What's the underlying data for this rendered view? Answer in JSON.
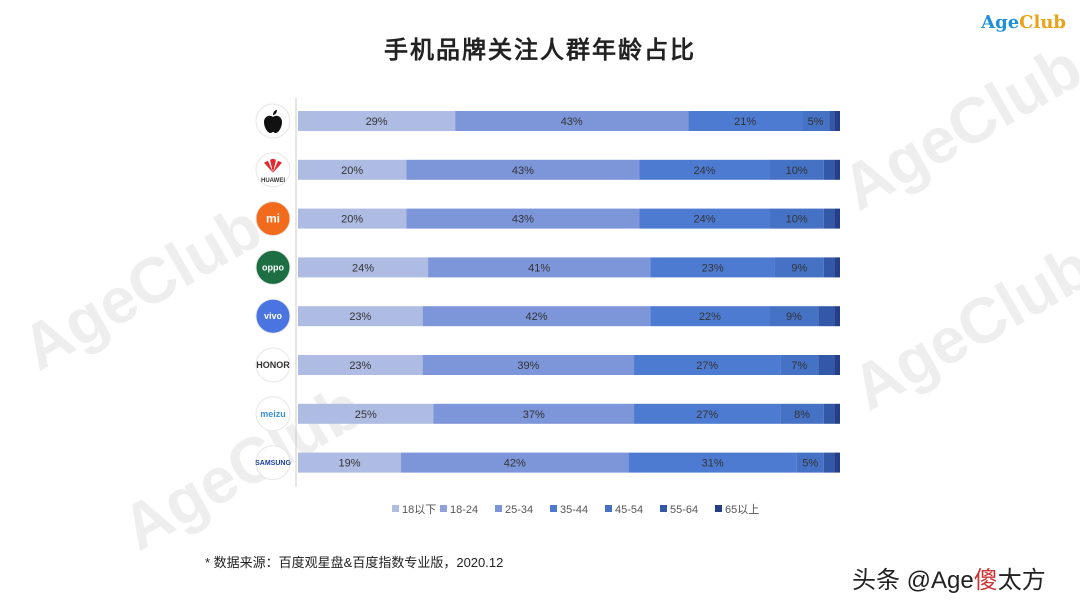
{
  "header": {
    "logo_part1": "Age",
    "logo_part2": "Club",
    "title": "手机品牌关注人群年龄占比"
  },
  "watermark": "AgeClub",
  "footer": {
    "source": "* 数据来源：百度观星盘&百度指数专业版，2020.12",
    "credit_prefix": "头条 @Age",
    "credit_highlight": "傻",
    "credit_suffix": "太方"
  },
  "chart_data": {
    "type": "bar",
    "orientation": "horizontal",
    "stacked": true,
    "normalized_to": 100,
    "title": "手机品牌关注人群年龄占比",
    "categories": [
      "Apple",
      "HUAWEI",
      "MI",
      "OPPO",
      "vivo",
      "HONOR",
      "MEIZU",
      "SAMSUNG"
    ],
    "series": [
      {
        "name": "18以下",
        "color": "#aebbe2",
        "values": [
          29,
          20,
          20,
          24,
          23,
          23,
          25,
          19
        ]
      },
      {
        "name": "18-24",
        "color": "#8fa2dc",
        "values": [
          0,
          0,
          0,
          0,
          0,
          0,
          0,
          0
        ]
      },
      {
        "name": "25-34",
        "color": "#7d95d9",
        "values": [
          43,
          43,
          43,
          41,
          42,
          39,
          37,
          42
        ]
      },
      {
        "name": "35-44",
        "color": "#4e7bd2",
        "values": [
          21,
          24,
          24,
          23,
          22,
          27,
          27,
          31
        ]
      },
      {
        "name": "45-54",
        "color": "#4572c5",
        "values": [
          5,
          10,
          10,
          9,
          9,
          7,
          8,
          5
        ]
      },
      {
        "name": "55-64",
        "color": "#3458a8",
        "values": [
          1,
          2,
          2,
          2,
          3,
          3,
          2,
          2
        ]
      },
      {
        "name": "65以上",
        "color": "#243f87",
        "values": [
          1,
          1,
          1,
          1,
          1,
          1,
          1,
          1
        ]
      }
    ],
    "labeled_series": [
      "18以下",
      "25-34",
      "35-44",
      "45-54"
    ],
    "xlim": [
      0,
      100
    ],
    "legend_position": "bottom",
    "grid": false,
    "brand_icons": [
      {
        "name": "apple-icon",
        "bg": "#ffffff",
        "fg": "#111111",
        "text": ""
      },
      {
        "name": "huawei-icon",
        "bg": "#ffffff",
        "fg": "#333333",
        "text": "HUAWEI",
        "accent": "#e0282e"
      },
      {
        "name": "mi-icon",
        "bg": "#f26b1d",
        "fg": "#ffffff",
        "text": "mi"
      },
      {
        "name": "oppo-icon",
        "bg": "#1d6f43",
        "fg": "#ffffff",
        "text": "oppo"
      },
      {
        "name": "vivo-icon",
        "bg": "#4a74e0",
        "fg": "#ffffff",
        "text": "vivo"
      },
      {
        "name": "honor-icon",
        "bg": "#ffffff",
        "fg": "#333333",
        "text": "HONOR"
      },
      {
        "name": "meizu-icon",
        "bg": "#ffffff",
        "fg": "#3d8fd8",
        "text": "meizu"
      },
      {
        "name": "samsung-icon",
        "bg": "#ffffff",
        "fg": "#1b3f9e",
        "text": "SAMSUNG"
      }
    ]
  }
}
